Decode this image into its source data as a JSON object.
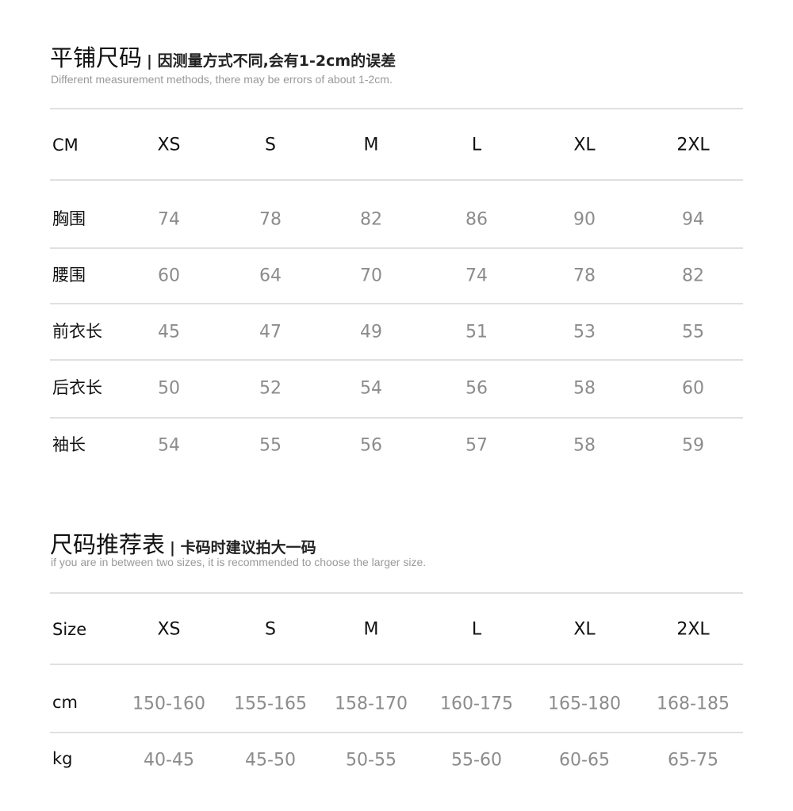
{
  "flat_size": {
    "title": "平铺尺码",
    "subtitle": "| 因测量方式不同,会有1-2cm的误差",
    "note": "Different measurement methods, there may be errors of about 1-2cm.",
    "header": [
      "CM",
      "XS",
      "S",
      "M",
      "L",
      "XL",
      "2XL"
    ],
    "rows": [
      {
        "label": "胸围",
        "values": [
          "74",
          "78",
          "82",
          "86",
          "90",
          "94"
        ]
      },
      {
        "label": "腰围",
        "values": [
          "60",
          "64",
          "70",
          "74",
          "78",
          "82"
        ]
      },
      {
        "label": "前衣长",
        "values": [
          "45",
          "47",
          "49",
          "51",
          "53",
          "55"
        ]
      },
      {
        "label": "后衣长",
        "values": [
          "50",
          "52",
          "54",
          "56",
          "58",
          "60"
        ]
      },
      {
        "label": "袖长",
        "values": [
          "54",
          "55",
          "56",
          "57",
          "58",
          "59"
        ]
      }
    ]
  },
  "recommend": {
    "title": "尺码推荐表",
    "subtitle": "| 卡码时建议拍大一码",
    "note": "if you are in between two sizes, it is recommended to choose the larger size.",
    "header": [
      "Size",
      "XS",
      "S",
      "M",
      "L",
      "XL",
      "2XL"
    ],
    "rows": [
      {
        "label": "cm",
        "values": [
          "150-160",
          "155-165",
          "158-170",
          "160-175",
          "165-180",
          "168-185"
        ]
      },
      {
        "label": "kg",
        "values": [
          "40-45",
          "45-50",
          "50-55",
          "55-60",
          "60-65",
          "65-75"
        ]
      }
    ]
  }
}
